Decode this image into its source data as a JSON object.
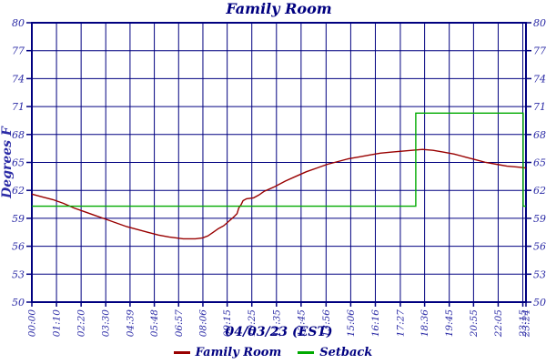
{
  "window": {
    "title": "Family Room temperature chart"
  },
  "colors": {
    "background": "#ffffff",
    "grid": "#000080",
    "frame": "#000080",
    "tick_text": "#2b2ba6",
    "heading_text": "#000080",
    "family_room_line": "#990000",
    "setback_line": "#00aa00"
  },
  "chart_data": {
    "type": "line",
    "title": "Family Room",
    "xlabel": "04/03/23 (EST)",
    "ylabel": "Degrees F",
    "ylim": [
      50,
      80
    ],
    "xlim_minutes": [
      0,
      1404
    ],
    "grid": true,
    "legend_position": "bottom",
    "y_ticks": [
      50,
      53,
      56,
      59,
      62,
      65,
      68,
      71,
      74,
      77,
      80
    ],
    "y_axis_sides": "both",
    "x_ticks": [
      {
        "minute": 0,
        "label": "00:00"
      },
      {
        "minute": 70,
        "label": "01:10"
      },
      {
        "minute": 140,
        "label": "02:20"
      },
      {
        "minute": 210,
        "label": "03:30"
      },
      {
        "minute": 279,
        "label": "04:39"
      },
      {
        "minute": 348,
        "label": "05:48"
      },
      {
        "minute": 417,
        "label": "06:57"
      },
      {
        "minute": 486,
        "label": "08:06"
      },
      {
        "minute": 555,
        "label": "09:15"
      },
      {
        "minute": 625,
        "label": "10:25"
      },
      {
        "minute": 695,
        "label": "11:35"
      },
      {
        "minute": 765,
        "label": "12:45"
      },
      {
        "minute": 836,
        "label": "13:56"
      },
      {
        "minute": 906,
        "label": "15:06"
      },
      {
        "minute": 976,
        "label": "16:16"
      },
      {
        "minute": 1047,
        "label": "17:27"
      },
      {
        "minute": 1116,
        "label": "18:36"
      },
      {
        "minute": 1186,
        "label": "19:45"
      },
      {
        "minute": 1255,
        "label": "20:55"
      },
      {
        "minute": 1325,
        "label": "22:05"
      },
      {
        "minute": 1395,
        "label": "23:15"
      },
      {
        "minute": 1404,
        "label": "23:24"
      }
    ],
    "series": [
      {
        "name": "Family Room",
        "color": "#990000",
        "points": [
          [
            0,
            61.6
          ],
          [
            30,
            61.3
          ],
          [
            60,
            61.0
          ],
          [
            90,
            60.6
          ],
          [
            120,
            60.1
          ],
          [
            150,
            59.7
          ],
          [
            180,
            59.3
          ],
          [
            210,
            58.9
          ],
          [
            240,
            58.5
          ],
          [
            270,
            58.1
          ],
          [
            300,
            57.8
          ],
          [
            330,
            57.5
          ],
          [
            360,
            57.2
          ],
          [
            390,
            57.0
          ],
          [
            410,
            56.9
          ],
          [
            430,
            56.8
          ],
          [
            465,
            56.8
          ],
          [
            485,
            56.9
          ],
          [
            500,
            57.1
          ],
          [
            515,
            57.5
          ],
          [
            530,
            57.9
          ],
          [
            545,
            58.2
          ],
          [
            560,
            58.7
          ],
          [
            575,
            59.2
          ],
          [
            583,
            59.5
          ],
          [
            588,
            60.1
          ],
          [
            595,
            60.5
          ],
          [
            600,
            60.9
          ],
          [
            610,
            61.1
          ],
          [
            630,
            61.2
          ],
          [
            645,
            61.5
          ],
          [
            660,
            61.9
          ],
          [
            690,
            62.4
          ],
          [
            720,
            63.0
          ],
          [
            750,
            63.5
          ],
          [
            780,
            64.0
          ],
          [
            810,
            64.4
          ],
          [
            840,
            64.8
          ],
          [
            870,
            65.1
          ],
          [
            900,
            65.4
          ],
          [
            930,
            65.6
          ],
          [
            960,
            65.8
          ],
          [
            990,
            66.0
          ],
          [
            1020,
            66.1
          ],
          [
            1050,
            66.2
          ],
          [
            1080,
            66.3
          ],
          [
            1110,
            66.4
          ],
          [
            1140,
            66.3
          ],
          [
            1170,
            66.1
          ],
          [
            1200,
            65.9
          ],
          [
            1230,
            65.6
          ],
          [
            1260,
            65.3
          ],
          [
            1290,
            65.0
          ],
          [
            1320,
            64.8
          ],
          [
            1350,
            64.6
          ],
          [
            1380,
            64.5
          ],
          [
            1404,
            64.4
          ]
        ]
      },
      {
        "name": "Setback",
        "color": "#00aa00",
        "points": [
          [
            0,
            60.3
          ],
          [
            1091,
            60.3
          ],
          [
            1091,
            70.3
          ],
          [
            1396,
            70.3
          ],
          [
            1396,
            60.3
          ],
          [
            1404,
            60.3
          ]
        ]
      }
    ]
  }
}
